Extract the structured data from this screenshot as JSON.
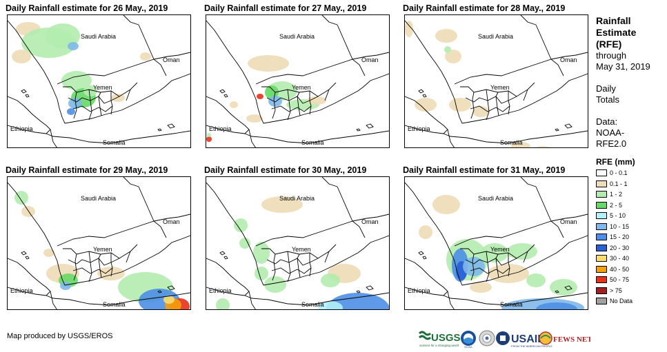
{
  "panels": [
    {
      "title": "Daily Rainfall estimate for 26 May., 2019"
    },
    {
      "title": "Daily Rainfall estimate for 27 May., 2019"
    },
    {
      "title": "Daily Rainfall estimate for 28 May., 2019"
    },
    {
      "title": "Daily Rainfall estimate for 29 May., 2019"
    },
    {
      "title": "Daily Rainfall estimate for 30 May., 2019"
    },
    {
      "title": "Daily Rainfall estimate for 31 May., 2019"
    }
  ],
  "map_labels": {
    "saudi": "Saudi Arabia",
    "oman": "Oman",
    "yemen": "Yemen",
    "ethiopia": "Ethiopia",
    "somalia": "Somalia"
  },
  "legend": {
    "title_line1": "Rainfall",
    "title_line2": "Estimate",
    "title_line3": "(RFE)",
    "through": "through",
    "date": "May 31, 2019",
    "daily": "Daily",
    "totals": "Totals",
    "data_label": "Data:",
    "data_source1": "NOAA-",
    "data_source2": "RFE2.0",
    "units": "RFE (mm)",
    "items": [
      {
        "label": "0 - 0.1",
        "color": "#ffffff"
      },
      {
        "label": "0.1 - 1",
        "color": "#eedcb5"
      },
      {
        "label": "1 - 2",
        "color": "#b3ecae"
      },
      {
        "label": "2 - 5",
        "color": "#66d966"
      },
      {
        "label": "5 - 10",
        "color": "#b2f0fa"
      },
      {
        "label": "10 - 15",
        "color": "#7fb8ea"
      },
      {
        "label": "15 - 20",
        "color": "#4c8fe6"
      },
      {
        "label": "20 - 30",
        "color": "#2a60d6"
      },
      {
        "label": "30 - 40",
        "color": "#fbdc6f"
      },
      {
        "label": "40 - 50",
        "color": "#f5a00c"
      },
      {
        "label": "50 - 75",
        "color": "#e8311a"
      },
      {
        "label": "> 75",
        "color": "#a32020"
      },
      {
        "label": "No Data",
        "color": "#a0a0a0"
      }
    ]
  },
  "credit": "Map produced by USGS/EROS",
  "logos": {
    "usgs": "USGS",
    "usgs_tag": "science for a changing world",
    "noaa": "NOAA",
    "usaid": "USAID",
    "usaid_tag": "FROM THE AMERICAN PEOPLE",
    "fews": "FEWS NET"
  }
}
